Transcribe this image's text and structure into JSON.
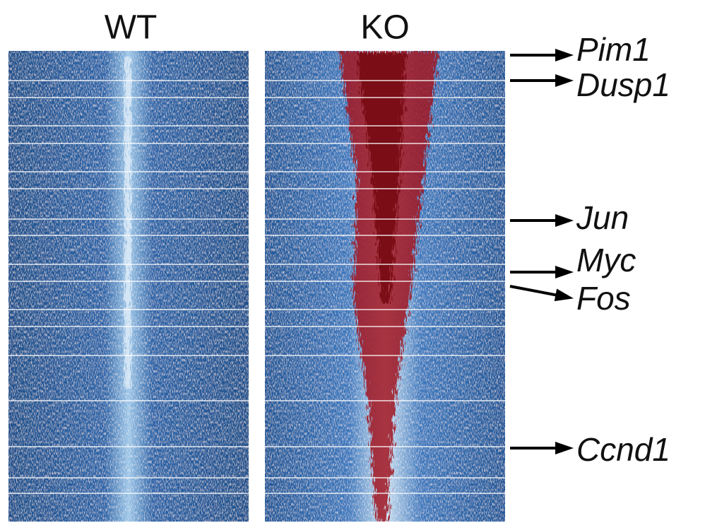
{
  "panels": [
    {
      "label": "WT"
    },
    {
      "label": "KO"
    }
  ],
  "genes": [
    {
      "label": "Pim1"
    },
    {
      "label": "Dusp1"
    },
    {
      "label": "Jun"
    },
    {
      "label": "Myc"
    },
    {
      "label": "Fos"
    },
    {
      "label": "Ccnd1"
    }
  ]
}
